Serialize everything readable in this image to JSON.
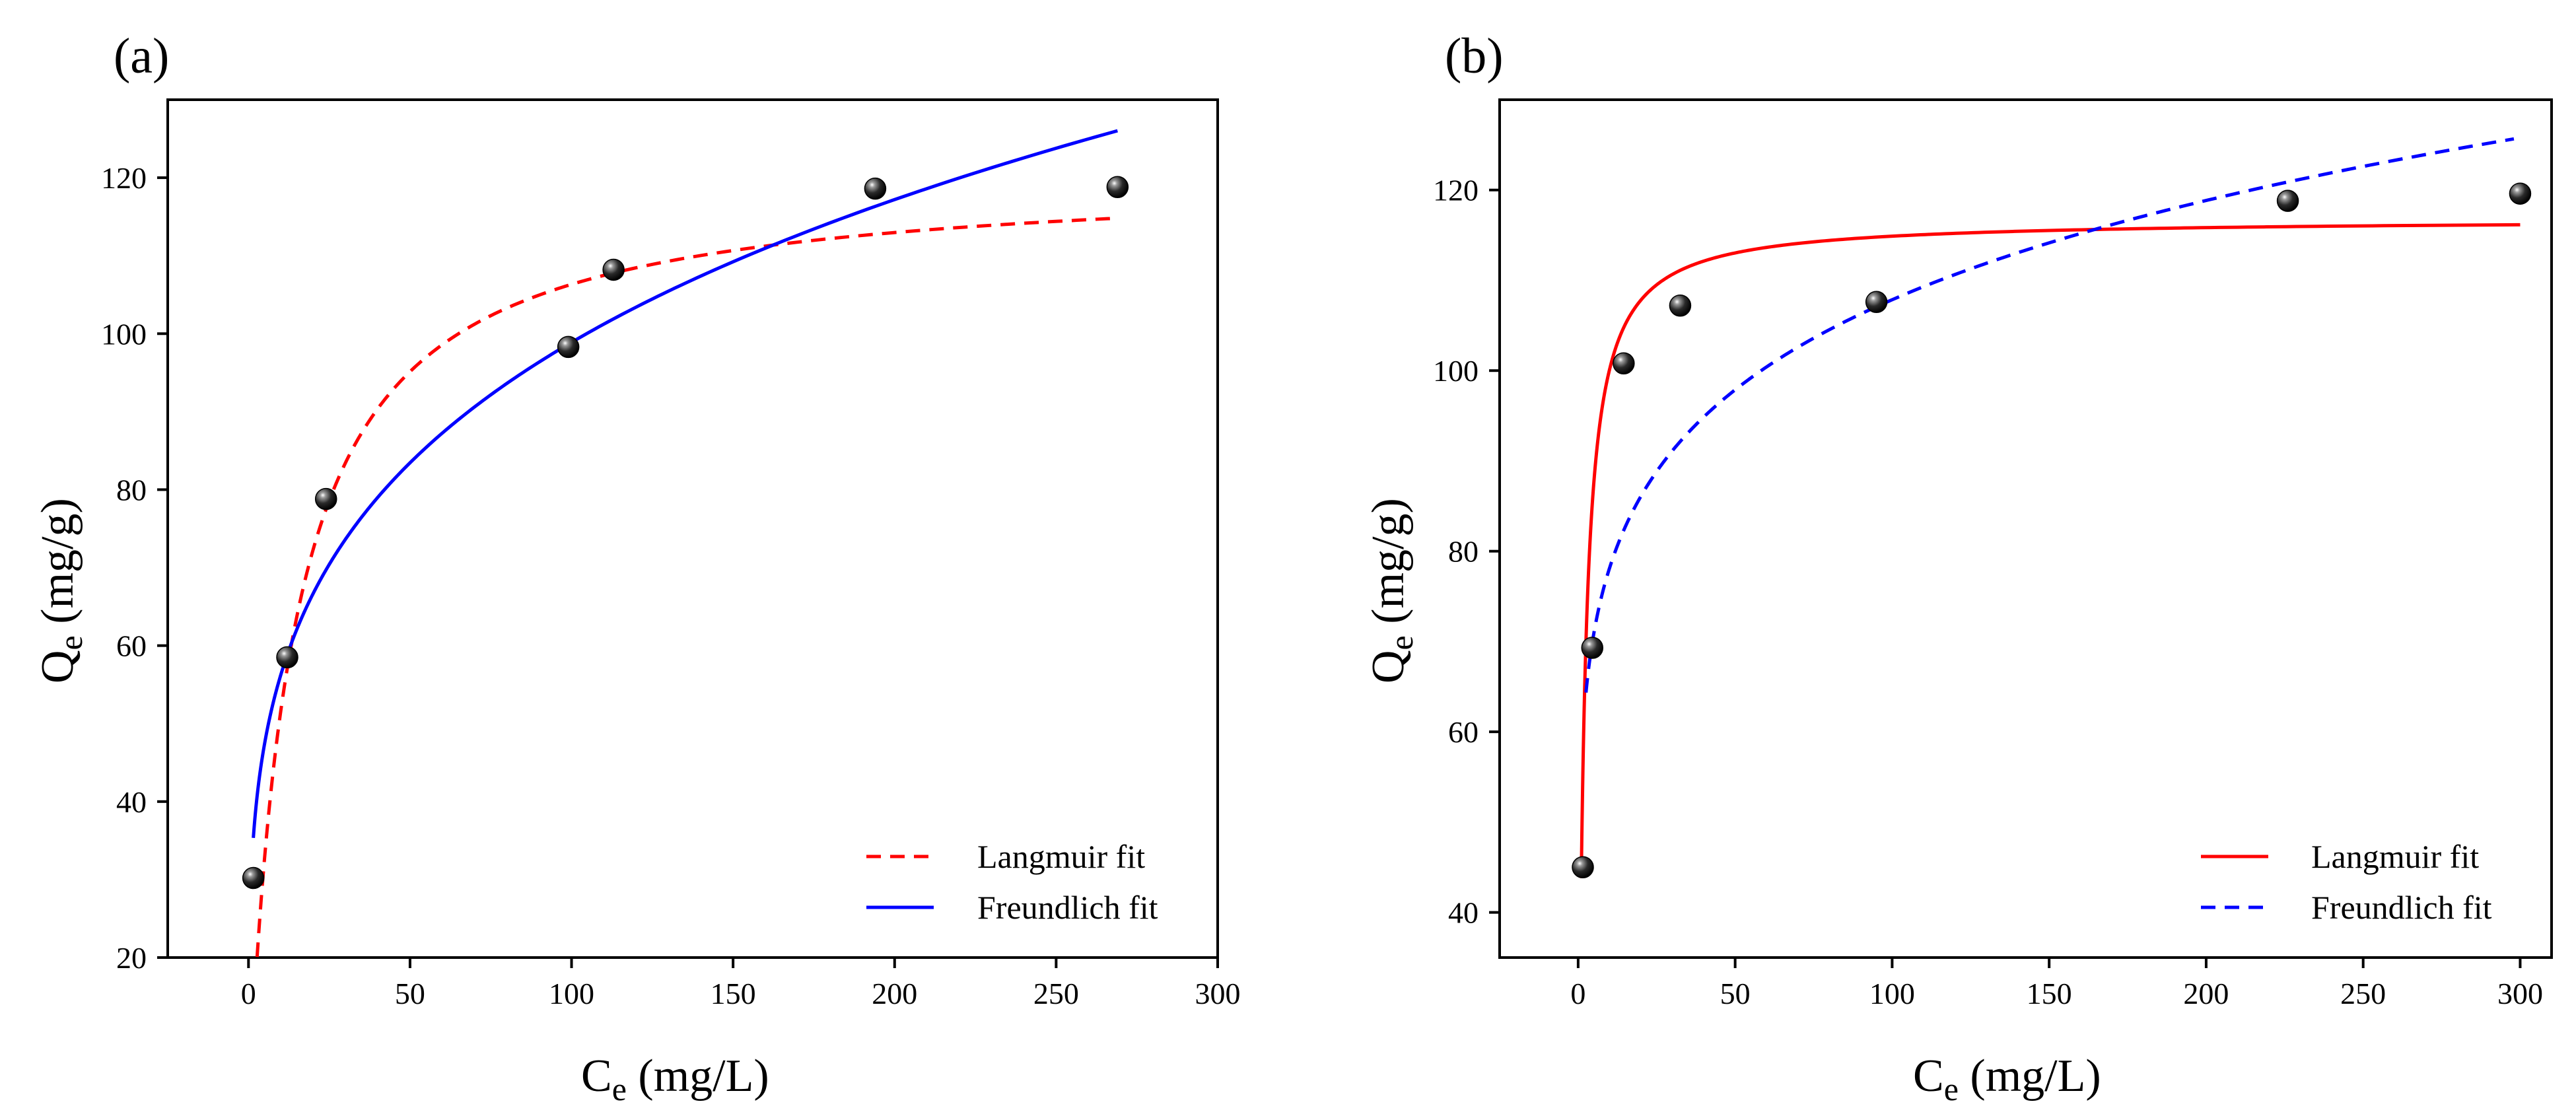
{
  "chart_data": [
    {
      "type": "scatter",
      "panel_label": "(a)",
      "xlabel": {
        "main": "C",
        "sub": "e",
        "unit": " (mg/L)"
      },
      "ylabel": {
        "main": "Q",
        "sub": "e",
        "unit": " (mg/g)"
      },
      "xlim": [
        -25,
        300
      ],
      "ylim": [
        20,
        130
      ],
      "xticks": [
        0,
        50,
        100,
        150,
        200,
        250,
        300
      ],
      "yticks": [
        20,
        40,
        60,
        80,
        100,
        120
      ],
      "grid": false,
      "legend_position": "bottom-right",
      "points": {
        "x": [
          1.5,
          12,
          24,
          99,
          113,
          194,
          269
        ],
        "y": [
          30.2,
          58.5,
          78.8,
          98.3,
          108.2,
          118.6,
          118.8
        ]
      },
      "series": [
        {
          "name": "Langmuir fit",
          "model": "langmuir",
          "qmax": 120.5,
          "KL": 0.075,
          "x_range": [
            2.2,
            269
          ],
          "color": "#ff0000",
          "dash": "dashed"
        },
        {
          "name": "Freundlich fit",
          "model": "freundlich",
          "KF": 32.0,
          "n_inv": 0.245,
          "x_range": [
            1.5,
            269
          ],
          "color": "#0000ff",
          "dash": "solid"
        }
      ]
    },
    {
      "type": "scatter",
      "panel_label": "(b)",
      "xlabel": {
        "main": "C",
        "sub": "e",
        "unit": " (mg/L)"
      },
      "ylabel": {
        "main": "Q",
        "sub": "e",
        "unit": " (mg/g)"
      },
      "xlim": [
        -25,
        310
      ],
      "ylim": [
        35,
        130
      ],
      "xticks": [
        0,
        50,
        100,
        150,
        200,
        250,
        300
      ],
      "yticks": [
        40,
        60,
        80,
        100,
        120
      ],
      "grid": false,
      "legend_position": "bottom-right",
      "points": {
        "x": [
          1.5,
          4.5,
          14.5,
          32.5,
          95,
          226,
          300
        ],
        "y": [
          45,
          69.3,
          100.8,
          107.2,
          107.6,
          118.8,
          119.6
        ]
      },
      "series": [
        {
          "name": "Langmuir fit",
          "model": "langmuir",
          "qmax": 116.8,
          "KL": 0.6,
          "x_range": [
            1.0,
            300
          ],
          "color": "#ff0000",
          "dash": "solid"
        },
        {
          "name": "Freundlich fit",
          "model": "freundlich",
          "KF": 56.6,
          "n_inv": 0.14,
          "x_range": [
            2.5,
            298
          ],
          "color": "#0000ff",
          "dash": "dashed"
        }
      ]
    }
  ]
}
